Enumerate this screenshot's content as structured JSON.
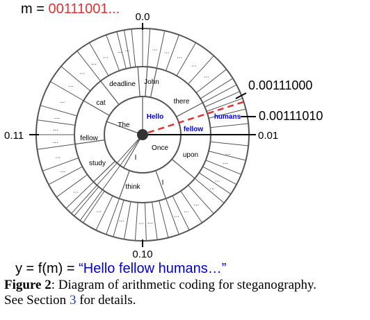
{
  "message": {
    "prefix": "m = ",
    "bits": "00111001..."
  },
  "output": {
    "prefix": "y = f(m) = ",
    "text": "“Hello fellow humans…”"
  },
  "axis_labels": {
    "top": "0.0",
    "right_upper": "0.00111000",
    "right_middle": "0.00111010",
    "right_lower": "0.01",
    "left": "0.11",
    "bottom": "0.10"
  },
  "tokens": {
    "inner": [
      "Hello",
      "The",
      "I",
      "Once"
    ],
    "middle": [
      "deadline",
      "John",
      "there",
      "humans",
      "fellow",
      "upon",
      "I",
      "think",
      "study",
      "fellow",
      "cat"
    ],
    "ellipsis": "..."
  },
  "colors": {
    "highlight": "#0000d8",
    "message": "#e53030",
    "dash": "#e53030",
    "ring": "#555555"
  },
  "caption": {
    "label": "Figure 2",
    "sep": ":",
    "body": "Diagram of arithmetic coding for steganography.",
    "line2_prefix": "See Section ",
    "section_ref": "3",
    "line2_suffix": " for details."
  }
}
